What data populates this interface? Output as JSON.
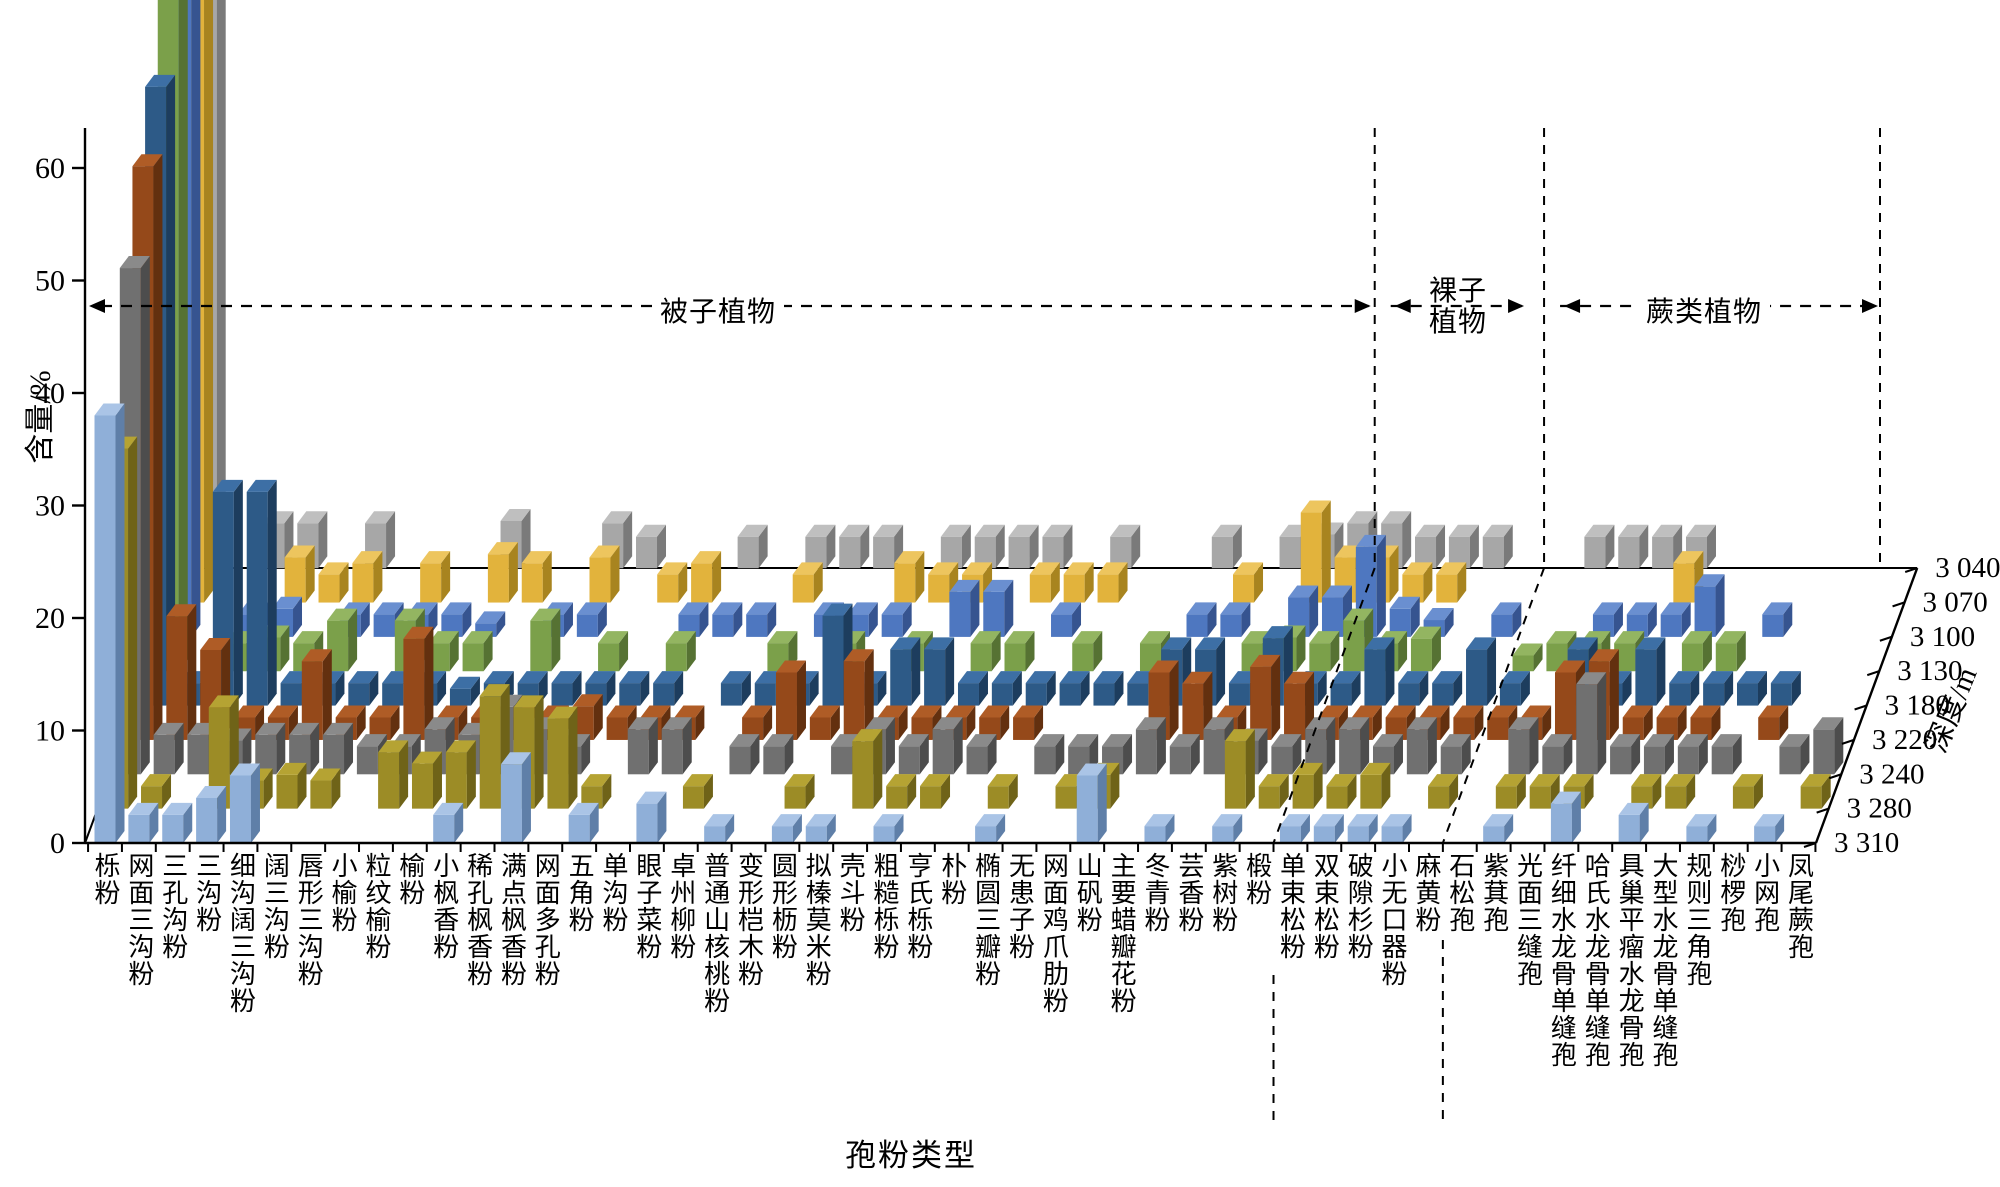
{
  "yAxis": {
    "title": "含量/%",
    "ticks": [
      "0",
      "10",
      "20",
      "30",
      "40",
      "50",
      "60"
    ]
  },
  "xAxis": {
    "title": "孢粉类型"
  },
  "depthAxis": {
    "title": "深度/m",
    "labels": [
      "3 040",
      "3 070",
      "3 100",
      "3 130",
      "3 180",
      "3 220",
      "3 240",
      "3 280",
      "3 310"
    ]
  },
  "groups": [
    {
      "label": "被子植物",
      "start": 0,
      "count": 35
    },
    {
      "label": "裸子植物",
      "start": 35,
      "count": 5
    },
    {
      "label": "蕨类植物",
      "start": 40,
      "count": 11
    }
  ],
  "chart_data": {
    "type": "bar",
    "variant": "3d-depth-series",
    "title": "",
    "xlabel": "孢粉类型",
    "ylabel": "含量/%",
    "zlabel": "深度/m",
    "ylim": [
      0,
      60
    ],
    "grid": false,
    "categories": [
      "栎粉",
      "网面三沟粉",
      "三孔沟粉",
      "三沟粉",
      "细沟阔三沟粉",
      "阔三沟粉",
      "唇形三沟粉",
      "小榆粉",
      "粒纹榆粉",
      "榆粉",
      "小枫香粉",
      "稀孔枫香粉",
      "满点枫香粉",
      "网面多孔粉",
      "五角粉",
      "单沟粉",
      "眼子菜粉",
      "卓州柳粉",
      "普通山核桃粉",
      "变形桤木粉",
      "圆形枥粉",
      "拟榛莫米粉",
      "壳斗粉",
      "粗糙栎粉",
      "亨氏栎粉",
      "朴粉",
      "椭圆三瓣粉",
      "无患子粉",
      "网面鸡爪肋粉",
      "山矾粉",
      "主要蜡瓣花粉",
      "冬青粉",
      "芸香粉",
      "紫树粉",
      "椴粉",
      "单束松粉",
      "双束松粉",
      "破隙杉粉",
      "小无口器粉",
      "麻黄粉",
      "石松孢",
      "紫萁孢",
      "光面三缝孢",
      "纤细水龙骨单缝孢",
      "哈氏水龙骨单缝孢",
      "具巢平瘤水龙骨孢",
      "大型水龙骨单缝孢",
      "规则三角孢",
      "桫椤孢",
      "小网孢",
      "凤尾蕨孢"
    ],
    "series": [
      {
        "name": "3 040",
        "color": "#A7A7A7",
        "side": "#7A7A7A",
        "top": "#BFBFBF",
        "values": [
          76,
          0,
          4,
          4,
          0,
          4,
          0,
          0,
          0,
          4.2,
          0,
          0,
          4,
          2.8,
          0,
          0,
          2.8,
          0,
          2.8,
          2.8,
          2.8,
          0,
          2.8,
          2.8,
          2.8,
          2.8,
          0,
          2.8,
          0,
          0,
          2.8,
          0,
          2.8,
          3,
          4,
          4,
          2.8,
          2.8,
          2.8,
          0,
          0,
          2.8,
          2.8,
          2.8,
          2.8,
          0,
          0,
          0,
          0,
          0,
          0
        ]
      },
      {
        "name": "3 070",
        "color": "#E2B33C",
        "side": "#A8841F",
        "top": "#EDC55E",
        "values": [
          73,
          0,
          0,
          4,
          2.5,
          3.5,
          0,
          3.5,
          0,
          4.3,
          3.5,
          0,
          4,
          0,
          2.5,
          3.5,
          0,
          0,
          2.5,
          0,
          0,
          3.5,
          2.5,
          2.5,
          0,
          2.5,
          2.5,
          2.5,
          0,
          0,
          0,
          2.5,
          0,
          8,
          4,
          4,
          2.5,
          2.5,
          0,
          0,
          0,
          0,
          0,
          0,
          3.5,
          0,
          0,
          0,
          0,
          0,
          0
        ]
      },
      {
        "name": "3 100",
        "color": "#4E77C0",
        "side": "#365490",
        "top": "#6A8FD0",
        "values": [
          70,
          0,
          2,
          2.5,
          0,
          2,
          2,
          2,
          2,
          1.2,
          0,
          2,
          2,
          0,
          0,
          2,
          2,
          2,
          0,
          2,
          2,
          2,
          0,
          4,
          4,
          0,
          2,
          0,
          0,
          0,
          2,
          2,
          0,
          3.5,
          3.5,
          8,
          2.5,
          1.5,
          0,
          2,
          0,
          0,
          2,
          2,
          2,
          4.5,
          0,
          2,
          0,
          0,
          0
        ]
      },
      {
        "name": "3 130",
        "color": "#7BA04A",
        "side": "#567233",
        "top": "#93B561",
        "values": [
          67,
          0,
          2.5,
          3,
          2.5,
          4.5,
          0,
          4.5,
          2.5,
          2.5,
          0,
          4.5,
          0,
          2.5,
          0,
          2.5,
          0,
          0,
          2.5,
          0,
          2.5,
          0,
          2.5,
          0,
          2.5,
          2.5,
          0,
          2.5,
          0,
          2.5,
          0,
          0,
          2.5,
          3,
          2.5,
          4.5,
          2.5,
          2.9,
          0,
          0,
          1.4,
          2.5,
          2.5,
          2.5,
          0,
          2.5,
          2.5,
          0,
          0,
          0,
          0
        ]
      },
      {
        "name": "3 180",
        "color": "#2D5A87",
        "side": "#1D3D5E",
        "top": "#3D6FA5",
        "values": [
          55,
          2,
          19,
          19,
          2,
          2,
          2,
          2,
          2,
          1.5,
          2,
          2,
          2,
          2,
          2,
          2,
          0,
          2,
          2,
          2,
          8,
          2,
          5,
          5,
          2,
          2,
          2,
          2,
          2,
          2,
          5,
          5,
          2,
          6,
          2,
          2,
          5,
          2,
          2,
          5,
          2,
          0,
          5,
          2,
          5,
          2,
          2,
          2,
          2,
          0,
          0
        ]
      },
      {
        "name": "3 220",
        "color": "#95491A",
        "side": "#63300F",
        "top": "#AF5C26",
        "values": [
          51,
          11,
          8,
          2,
          2,
          7,
          2,
          2,
          9,
          2,
          2,
          2,
          2,
          3,
          2,
          2,
          2,
          0,
          2,
          6,
          2,
          7,
          2,
          2,
          2,
          2,
          2,
          0,
          0,
          0,
          6,
          5,
          2,
          6.5,
          5,
          2,
          2,
          2,
          2,
          2,
          2,
          2,
          6,
          7,
          2,
          2,
          2,
          0,
          2,
          0,
          0
        ]
      },
      {
        "name": "3 240",
        "color": "#707070",
        "side": "#4D4D4D",
        "top": "#8A8A8A",
        "values": [
          45,
          3.5,
          3.5,
          3,
          3.5,
          3.5,
          3.5,
          2.5,
          2.5,
          4,
          3.5,
          6,
          4,
          2.5,
          0,
          4,
          4,
          0,
          2.5,
          2.5,
          0,
          2.5,
          4,
          2.5,
          4,
          2.5,
          0,
          2.5,
          2.5,
          2.5,
          4,
          2.5,
          4,
          3,
          2.5,
          4,
          4,
          2.5,
          4,
          2.5,
          0,
          4,
          2.5,
          8,
          2.5,
          2.5,
          2.5,
          2.5,
          0,
          2.5,
          4
        ]
      },
      {
        "name": "3 280",
        "color": "#9C8C26",
        "side": "#6F6318",
        "top": "#B5A333",
        "values": [
          32,
          2,
          0,
          9,
          2.5,
          3,
          2.5,
          0,
          5,
          4,
          5,
          10,
          9,
          8,
          2,
          0,
          0,
          2,
          0,
          0,
          2,
          0,
          6,
          2,
          2,
          0,
          2,
          0,
          2,
          3,
          0,
          0,
          0,
          6,
          2,
          3,
          2,
          3,
          0,
          2,
          0,
          2,
          2,
          2,
          0,
          2,
          2,
          0,
          2,
          0,
          2
        ]
      },
      {
        "name": "3 310",
        "color": "#8FAFD8",
        "side": "#5F7FA8",
        "top": "#AAC4E6",
        "values": [
          38,
          2.5,
          2.5,
          4,
          6,
          0,
          0,
          0,
          0,
          0,
          2.5,
          0,
          7,
          0,
          2.5,
          0,
          3.5,
          0,
          1.5,
          0,
          1.5,
          1.5,
          0,
          1.5,
          0,
          0,
          1.5,
          0,
          0,
          6,
          0,
          1.5,
          0,
          1.5,
          0,
          1.5,
          1.5,
          1.5,
          1.5,
          0,
          0,
          1.5,
          0,
          3.5,
          0,
          2.5,
          0,
          1.5,
          0,
          1.5,
          0
        ]
      }
    ]
  }
}
